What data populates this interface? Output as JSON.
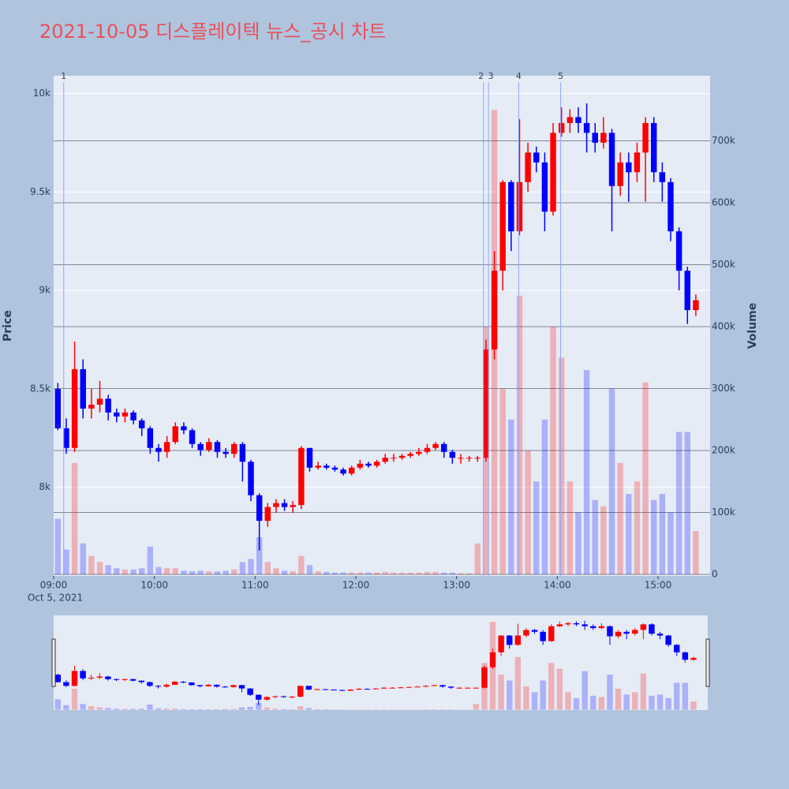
{
  "chart_data": {
    "type": "candlestick",
    "title": "2021-10-05 디스플레이텍 뉴스_공시 차트",
    "y_label": "Price",
    "y2_label": "Volume",
    "date_label": "Oct 5, 2021",
    "increasing_color": "#ff0000",
    "decreasing_color": "#0000ff",
    "x": [
      "2021-10-05 09:00",
      "2021-10-05 09:05",
      "2021-10-05 09:10",
      "2021-10-05 09:15",
      "2021-10-05 09:20",
      "2021-10-05 09:25",
      "2021-10-05 09:30",
      "2021-10-05 09:35",
      "2021-10-05 09:40",
      "2021-10-05 09:45",
      "2021-10-05 09:50",
      "2021-10-05 09:55",
      "2021-10-05 10:00",
      "2021-10-05 10:05",
      "2021-10-05 10:10",
      "2021-10-05 10:15",
      "2021-10-05 10:20",
      "2021-10-05 10:25",
      "2021-10-05 10:30",
      "2021-10-05 10:35",
      "2021-10-05 10:40",
      "2021-10-05 10:45",
      "2021-10-05 10:50",
      "2021-10-05 10:55",
      "2021-10-05 11:00",
      "2021-10-05 11:05",
      "2021-10-05 11:10",
      "2021-10-05 11:15",
      "2021-10-05 11:20",
      "2021-10-05 11:25",
      "2021-10-05 11:30",
      "2021-10-05 11:35",
      "2021-10-05 11:40",
      "2021-10-05 11:45",
      "2021-10-05 11:50",
      "2021-10-05 11:55",
      "2021-10-05 12:00",
      "2021-10-05 12:05",
      "2021-10-05 12:10",
      "2021-10-05 12:15",
      "2021-10-05 12:20",
      "2021-10-05 12:25",
      "2021-10-05 12:30",
      "2021-10-05 12:35",
      "2021-10-05 12:40",
      "2021-10-05 12:45",
      "2021-10-05 12:50",
      "2021-10-05 12:55",
      "2021-10-05 13:00",
      "2021-10-05 13:05",
      "2021-10-05 13:10",
      "2021-10-05 13:15",
      "2021-10-05 13:20",
      "2021-10-05 13:25",
      "2021-10-05 13:30",
      "2021-10-05 13:35",
      "2021-10-05 13:40",
      "2021-10-05 13:45",
      "2021-10-05 13:50",
      "2021-10-05 13:55",
      "2021-10-05 14:00",
      "2021-10-05 14:05",
      "2021-10-05 14:10",
      "2021-10-05 14:15",
      "2021-10-05 14:20",
      "2021-10-05 14:25",
      "2021-10-05 14:30",
      "2021-10-05 14:35",
      "2021-10-05 14:40",
      "2021-10-05 14:45",
      "2021-10-05 14:50",
      "2021-10-05 14:55",
      "2021-10-05 15:00",
      "2021-10-05 15:05",
      "2021-10-05 15:10",
      "2021-10-05 15:15",
      "2021-10-05 15:20"
    ],
    "open": [
      8500,
      8300,
      8200,
      8600,
      8400,
      8420,
      8450,
      8380,
      8360,
      8380,
      8340,
      8300,
      8200,
      8180,
      8230,
      8310,
      8290,
      8220,
      8190,
      8230,
      8180,
      8170,
      8220,
      8130,
      7960,
      7830,
      7900,
      7920,
      7900,
      7910,
      8200,
      8100,
      8110,
      8100,
      8090,
      8070,
      8100,
      8120,
      8110,
      8130,
      8150,
      8150,
      8160,
      8170,
      8180,
      8200,
      8220,
      8180,
      8150,
      8150,
      8150,
      8150,
      8700,
      9100,
      9550,
      9300,
      9550,
      9700,
      9650,
      9400,
      9800,
      9850,
      9880,
      9850,
      9800,
      9750,
      9800,
      9530,
      9650,
      9600,
      9700,
      9850,
      9600,
      9550,
      9300,
      9100,
      8900
    ],
    "close": [
      8300,
      8200,
      8600,
      8400,
      8420,
      8450,
      8380,
      8360,
      8380,
      8340,
      8300,
      8200,
      8180,
      8230,
      8310,
      8290,
      8220,
      8190,
      8230,
      8180,
      8170,
      8220,
      8130,
      7960,
      7830,
      7900,
      7920,
      7900,
      7910,
      8200,
      8100,
      8110,
      8100,
      8090,
      8070,
      8100,
      8120,
      8110,
      8130,
      8150,
      8150,
      8160,
      8170,
      8180,
      8200,
      8220,
      8180,
      8150,
      8150,
      8150,
      8150,
      8700,
      9100,
      9550,
      9300,
      9550,
      9700,
      9650,
      9400,
      9800,
      9850,
      9880,
      9850,
      9800,
      9750,
      9800,
      9530,
      9650,
      9600,
      9700,
      9850,
      9600,
      9550,
      9300,
      9100,
      8900,
      8950
    ],
    "high": [
      8530,
      8350,
      8740,
      8650,
      8500,
      8540,
      8470,
      8400,
      8400,
      8390,
      8350,
      8310,
      8220,
      8260,
      8330,
      8330,
      8300,
      8230,
      8250,
      8240,
      8200,
      8230,
      8230,
      8140,
      7970,
      7920,
      7940,
      7940,
      7930,
      8210,
      8200,
      8130,
      8120,
      8110,
      8100,
      8110,
      8140,
      8130,
      8140,
      8170,
      8170,
      8170,
      8180,
      8200,
      8220,
      8230,
      8230,
      8190,
      8170,
      8160,
      8160,
      8750,
      9200,
      9560,
      9560,
      9870,
      9750,
      9730,
      9700,
      9850,
      9930,
      9920,
      9930,
      9950,
      9850,
      9880,
      9820,
      9700,
      9700,
      9750,
      9880,
      9880,
      9650,
      9570,
      9320,
      9120,
      8980
    ],
    "low": [
      8290,
      8170,
      8180,
      8350,
      8350,
      8380,
      8340,
      8330,
      8330,
      8320,
      8260,
      8170,
      8130,
      8150,
      8220,
      8270,
      8200,
      8160,
      8180,
      8150,
      8150,
      8150,
      8030,
      7930,
      7680,
      7800,
      7870,
      7880,
      7870,
      7890,
      8080,
      8090,
      8090,
      8080,
      8060,
      8060,
      8090,
      8100,
      8100,
      8120,
      8130,
      8140,
      8150,
      8160,
      8170,
      8190,
      8150,
      8120,
      8120,
      8130,
      8130,
      8130,
      8650,
      9000,
      9200,
      9280,
      9500,
      9600,
      9300,
      9380,
      9780,
      9800,
      9800,
      9700,
      9700,
      9720,
      9300,
      9480,
      9450,
      9550,
      9450,
      9550,
      9450,
      9250,
      9000,
      8830,
      8870
    ],
    "volume": [
      90000,
      40000,
      180000,
      50000,
      30000,
      20000,
      15000,
      10000,
      8000,
      8000,
      10000,
      45000,
      12000,
      10000,
      10000,
      6000,
      5000,
      6000,
      5000,
      5000,
      6000,
      8000,
      20000,
      25000,
      60000,
      20000,
      10000,
      6000,
      5000,
      30000,
      15000,
      5000,
      4000,
      3000,
      3000,
      3000,
      3000,
      3000,
      3000,
      4000,
      3000,
      3000,
      3000,
      3000,
      4000,
      4000,
      3000,
      3000,
      2000,
      2000,
      50000,
      400000,
      750000,
      300000,
      250000,
      450000,
      200000,
      150000,
      250000,
      400000,
      350000,
      150000,
      100000,
      330000,
      120000,
      110000,
      300000,
      180000,
      130000,
      150000,
      310000,
      120000,
      130000,
      100000,
      230000,
      230000,
      70000
    ],
    "xlim": [
      "2021-10-05 09:00",
      "2021-10-05 15:31"
    ],
    "xticks": [
      {
        "value": "2021-10-05 09:00",
        "label": "09:00"
      },
      {
        "value": "2021-10-05 10:00",
        "label": "10:00"
      },
      {
        "value": "2021-10-05 11:00",
        "label": "11:00"
      },
      {
        "value": "2021-10-05 12:00",
        "label": "12:00"
      },
      {
        "value": "2021-10-05 13:00",
        "label": "13:00"
      },
      {
        "value": "2021-10-05 14:00",
        "label": "14:00"
      },
      {
        "value": "2021-10-05 15:00",
        "label": "15:00"
      }
    ],
    "ylim": [
      7550,
      10090
    ],
    "yticks": [
      {
        "value": 8000,
        "label": "8k"
      },
      {
        "value": 8500,
        "label": "8.5k"
      },
      {
        "value": 9000,
        "label": "9k"
      },
      {
        "value": 9500,
        "label": "9.5k"
      },
      {
        "value": 10000,
        "label": "10k"
      }
    ],
    "y2lim": [
      -2500,
      805000
    ],
    "y2ticks": [
      0,
      {
        "value": 100000,
        "label": "100k"
      },
      {
        "value": 200000,
        "label": "200k"
      },
      {
        "value": 300000,
        "label": "300k"
      },
      {
        "value": 400000,
        "label": "400k"
      },
      {
        "value": 500000,
        "label": "500k"
      },
      {
        "value": 600000,
        "label": "600k"
      },
      {
        "value": 700000,
        "label": "700k"
      }
    ],
    "annotations": [
      {
        "x": "2021-10-05 09:06",
        "text": "1"
      },
      {
        "x": "2021-10-05 13:16",
        "text": "2"
      },
      {
        "x": "2021-10-05 13:19",
        "text": "3"
      },
      {
        "x": "2021-10-05 13:37",
        "text": "4"
      },
      {
        "x": "2021-10-05 14:02",
        "text": "5"
      }
    ]
  }
}
